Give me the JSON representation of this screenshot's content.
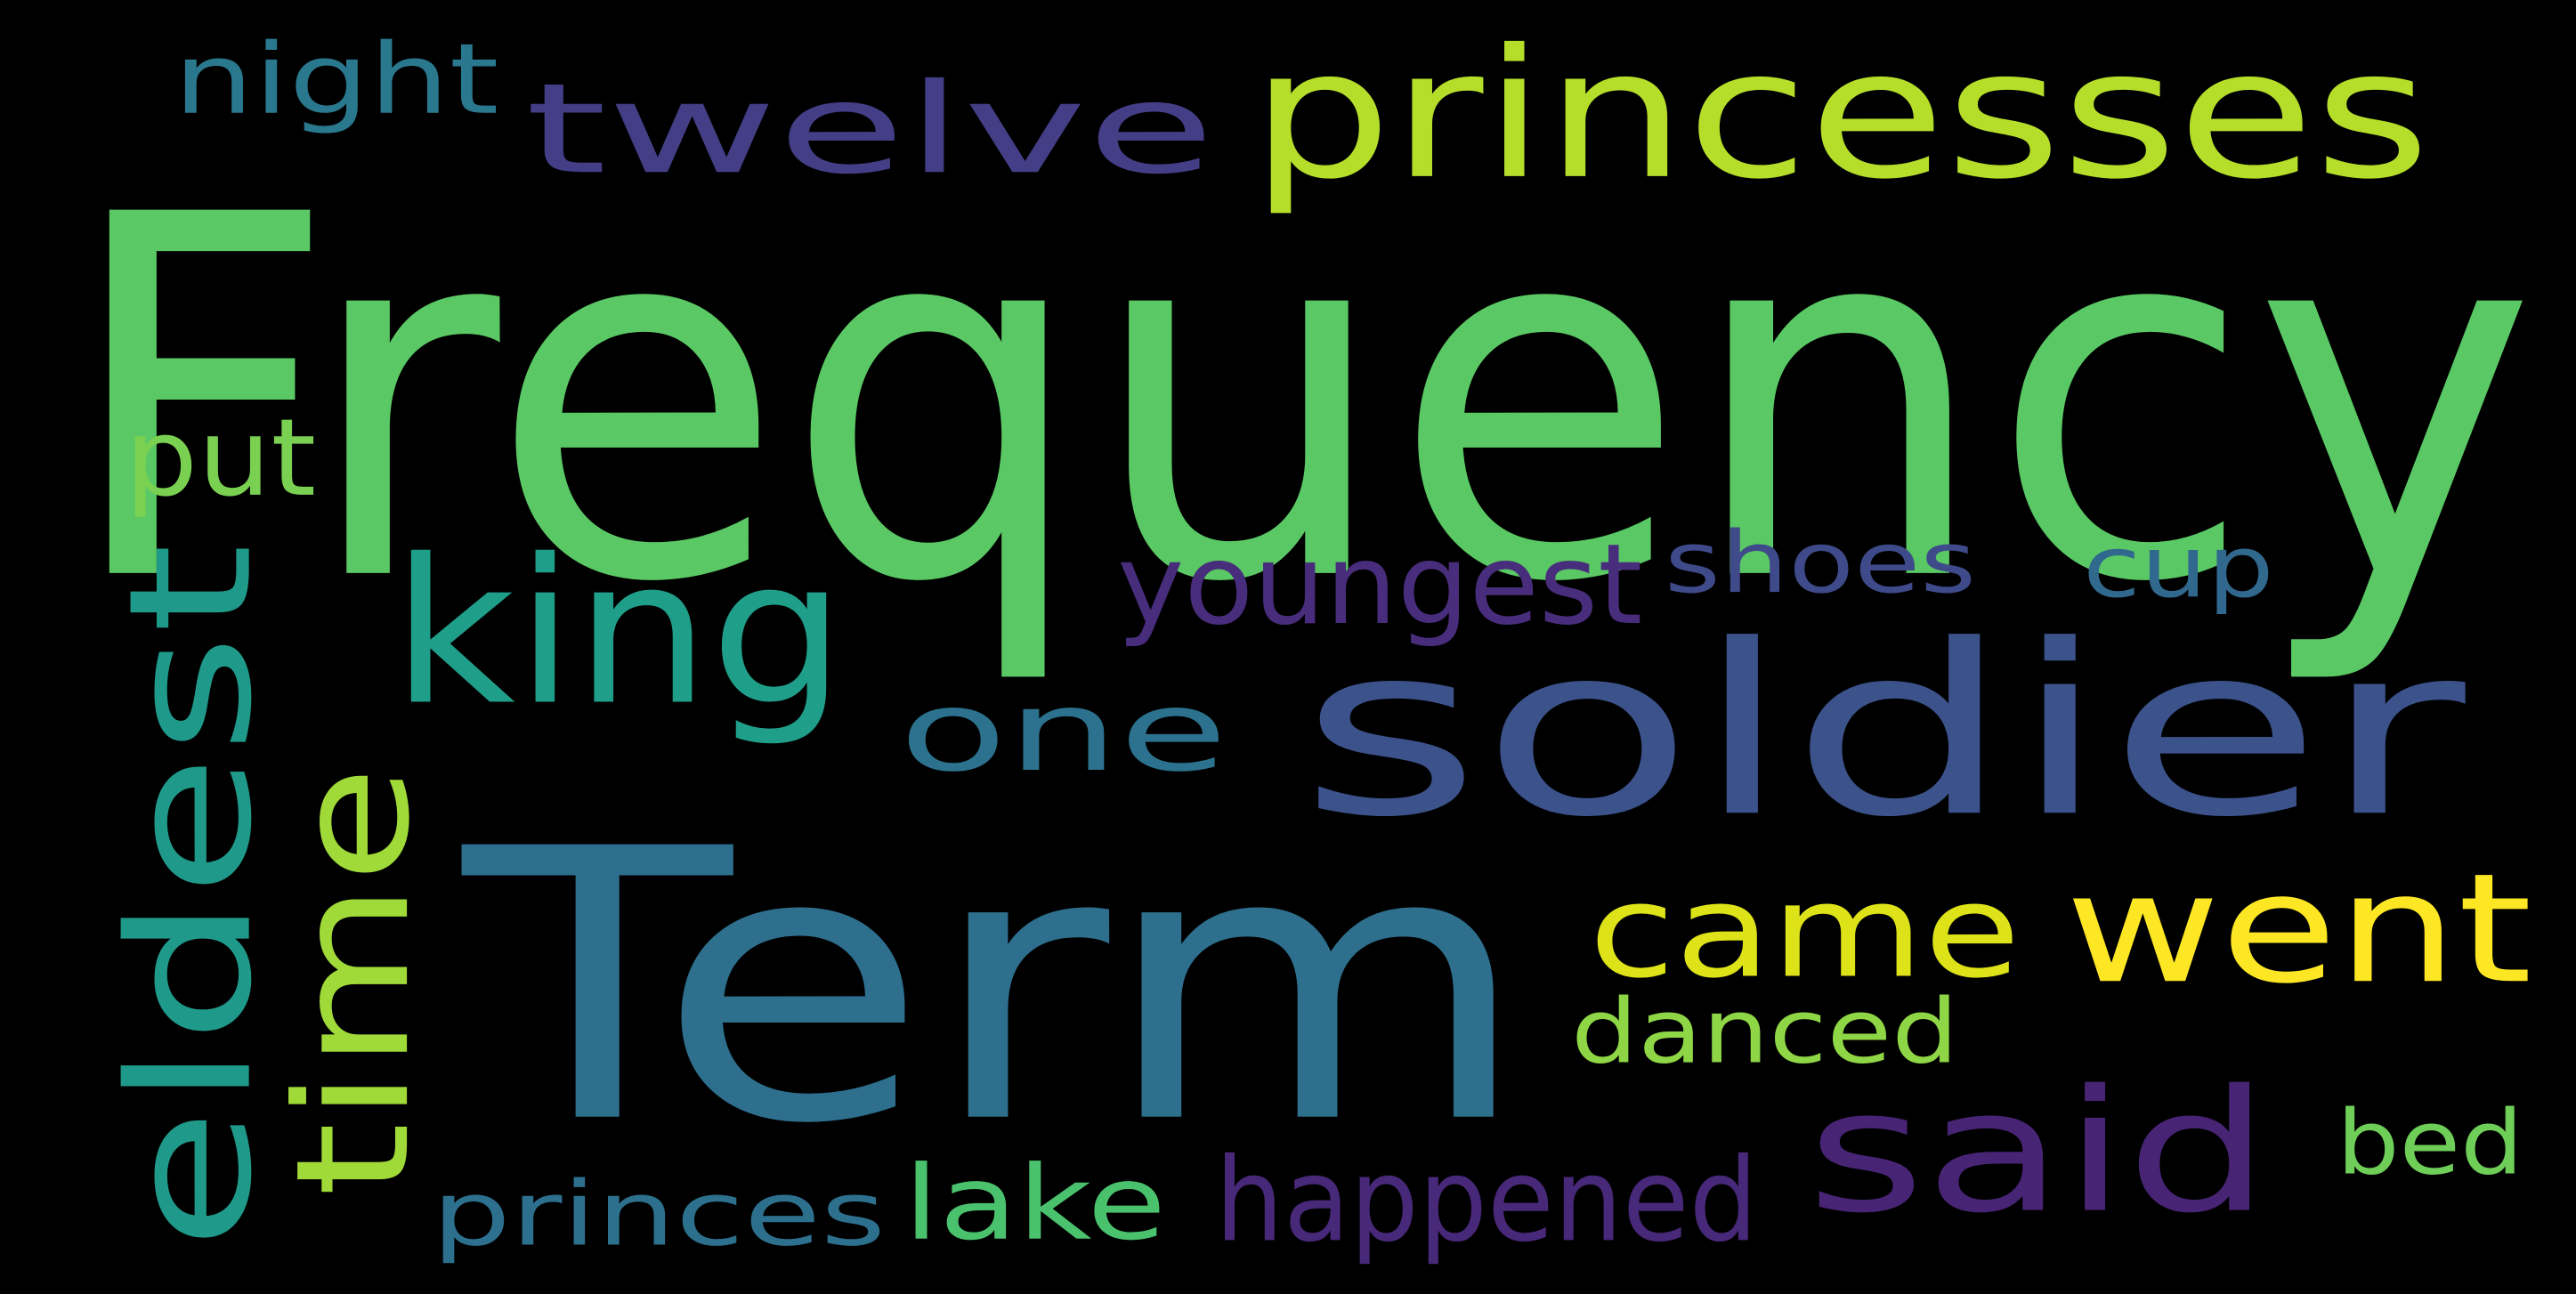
{
  "words": [
    {
      "key": "frequency",
      "text": "Frequency",
      "color": "#5ac864"
    },
    {
      "key": "term",
      "text": "Term",
      "color": "#2e6f8e"
    },
    {
      "key": "soldier",
      "text": "soldier",
      "color": "#3b528b"
    },
    {
      "key": "princesses",
      "text": "princesses",
      "color": "#b5de2b"
    },
    {
      "key": "twelve",
      "text": "twelve",
      "color": "#433e85"
    },
    {
      "key": "king",
      "text": "king",
      "color": "#1f9e89"
    },
    {
      "key": "one",
      "text": "one",
      "color": "#2c728e"
    },
    {
      "key": "came",
      "text": "came",
      "color": "#dde318"
    },
    {
      "key": "went",
      "text": "went",
      "color": "#fde725"
    },
    {
      "key": "said",
      "text": "said",
      "color": "#482475"
    },
    {
      "key": "eldest",
      "text": "eldest",
      "color": "#1f9a8a"
    },
    {
      "key": "time",
      "text": "time",
      "color": "#a0da39"
    },
    {
      "key": "youngest",
      "text": "youngest",
      "color": "#472d7b"
    },
    {
      "key": "shoes",
      "text": "shoes",
      "color": "#3e4a89"
    },
    {
      "key": "cup",
      "text": "cup",
      "color": "#31688e"
    },
    {
      "key": "night",
      "text": "night",
      "color": "#2a788e"
    },
    {
      "key": "put",
      "text": "put",
      "color": "#7ad151"
    },
    {
      "key": "danced",
      "text": "danced",
      "color": "#8ed645"
    },
    {
      "key": "bed",
      "text": "bed",
      "color": "#6ece58"
    },
    {
      "key": "princes",
      "text": "princes",
      "color": "#2d708e"
    },
    {
      "key": "lake",
      "text": "lake",
      "color": "#4ac16d"
    },
    {
      "key": "happened",
      "text": "happened",
      "color": "#482878"
    }
  ]
}
